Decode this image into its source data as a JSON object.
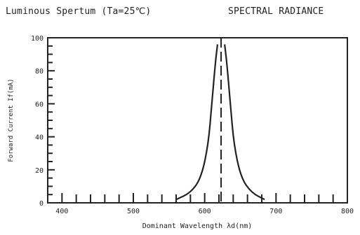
{
  "header": {
    "left_title": "Luminous Spertum (Ta=25℃)",
    "right_title": "SPECTRAL RADIANCE"
  },
  "chart_data": {
    "type": "line",
    "title": "Luminous Spertum (Ta=25℃)",
    "subtitle": "SPECTRAL RADIANCE",
    "xlabel": "Dominant Wavelength λd(nm)",
    "ylabel": "Forward Current If(mA)",
    "xlim": [
      380,
      800
    ],
    "ylim": [
      0,
      100
    ],
    "x_ticks": [
      400,
      500,
      600,
      700,
      800
    ],
    "y_ticks": [
      0,
      20,
      40,
      60,
      80,
      100
    ],
    "grid": false,
    "peak_wavelength": 623,
    "series": [
      {
        "x": [
          560,
          580,
          595,
          605,
          610,
          615,
          618
        ],
        "y": [
          2,
          6,
          15,
          35,
          60,
          85,
          96
        ]
      },
      {
        "x": [
          628,
          631,
          636,
          641,
          651,
          666,
          684
        ],
        "y": [
          96,
          85,
          60,
          35,
          15,
          6,
          2
        ]
      }
    ],
    "colors": {
      "axis": "#222222",
      "curve": "#222222"
    }
  }
}
